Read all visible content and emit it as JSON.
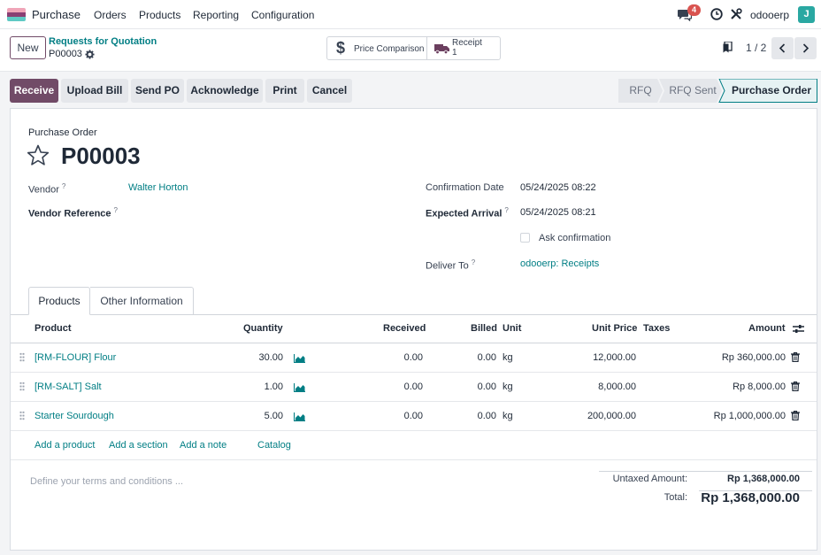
{
  "app": {
    "name": "Purchase"
  },
  "nav": {
    "menus": [
      "Orders",
      "Products",
      "Reporting",
      "Configuration"
    ]
  },
  "systray": {
    "messages_count": "4",
    "db_name": "odooerp",
    "avatar_letter": "J"
  },
  "control": {
    "new_label": "New",
    "breadcrumb": "Requests for Quotation",
    "record": "P00003",
    "price_comparison": "Price Comparison",
    "receipt_label": "Receipt",
    "receipt_count": "1",
    "pager": "1 / 2"
  },
  "actions": {
    "receive": "Receive",
    "upload_bill": "Upload Bill",
    "send_po": "Send PO",
    "acknowledge": "Acknowledge",
    "print": "Print",
    "cancel": "Cancel"
  },
  "statusbar": {
    "stages": [
      "RFQ",
      "RFQ Sent",
      "Purchase Order"
    ],
    "active": "Purchase Order"
  },
  "form": {
    "doc_type": "Purchase Order",
    "name": "P00003",
    "vendor_label": "Vendor",
    "vendor": "Walter Horton",
    "vendor_ref_label": "Vendor Reference",
    "confirmation_label": "Confirmation Date",
    "confirmation_date": "05/24/2025 08:22",
    "arrival_label": "Expected Arrival",
    "arrival_date": "05/24/2025 08:21",
    "ask_confirmation": "Ask confirmation",
    "deliver_label": "Deliver To",
    "deliver_to": "odooerp: Receipts",
    "help_mark": "?"
  },
  "tabs": [
    "Products",
    "Other Information"
  ],
  "table": {
    "headers": {
      "product": "Product",
      "quantity": "Quantity",
      "received": "Received",
      "billed": "Billed",
      "unit": "Unit",
      "unit_price": "Unit Price",
      "taxes": "Taxes",
      "amount": "Amount"
    },
    "rows": [
      {
        "product": "[RM-FLOUR] Flour",
        "quantity": "30.00",
        "received": "0.00",
        "billed": "0.00",
        "unit": "kg",
        "unit_price": "12,000.00",
        "taxes": "",
        "amount": "Rp 360,000.00"
      },
      {
        "product": "[RM-SALT] Salt",
        "quantity": "1.00",
        "received": "0.00",
        "billed": "0.00",
        "unit": "kg",
        "unit_price": "8,000.00",
        "taxes": "",
        "amount": "Rp 8,000.00"
      },
      {
        "product": "Starter Sourdough",
        "quantity": "5.00",
        "received": "0.00",
        "billed": "0.00",
        "unit": "kg",
        "unit_price": "200,000.00",
        "taxes": "",
        "amount": "Rp 1,000,000.00"
      }
    ],
    "add_product": "Add a product",
    "add_section": "Add a section",
    "add_note": "Add a note",
    "catalog": "Catalog"
  },
  "footer": {
    "terms_placeholder": "Define your terms and conditions ...",
    "untaxed_label": "Untaxed Amount:",
    "untaxed_value": "Rp 1,368,000.00",
    "total_label": "Total:",
    "total_value": "Rp 1,368,000.00"
  },
  "colors": {
    "brand": "#714b67",
    "link": "#017e84",
    "badge": "#d9534f",
    "avatar": "#2aa8a2"
  }
}
